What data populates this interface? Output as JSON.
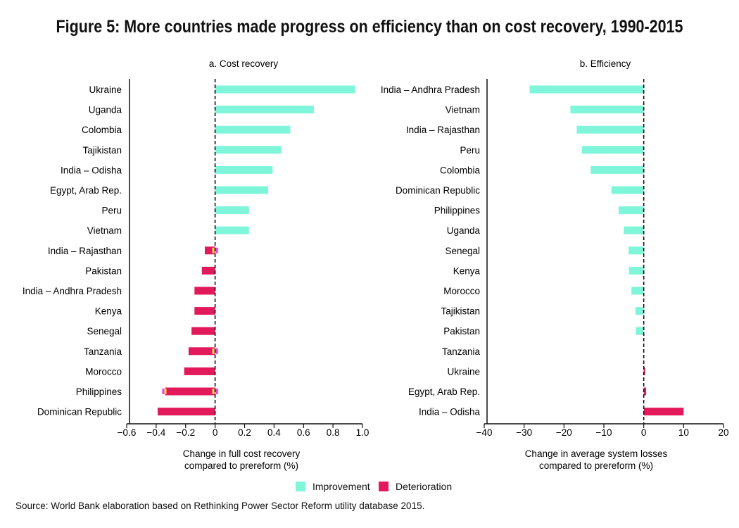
{
  "title": "Figure 5: More countries made progress on efficiency than on cost recovery, 1990-2015",
  "source": "Source: World Bank elaboration based on Rethinking Power Sector Reform utility database 2015.",
  "colors": {
    "improvement": "#7ff6d9",
    "deterioration": "#e2195a",
    "marker_yellow": "#ffe14d",
    "marker_magenta": "#e93be8"
  },
  "legend": {
    "improvement": "Improvement",
    "deterioration": "Deterioration"
  },
  "chart_data": [
    {
      "type": "bar",
      "orientation": "horizontal",
      "subtitle": "a. Cost recovery",
      "xlabel_lines": [
        "Change in full cost  recovery",
        "compared  to prereform (%)"
      ],
      "xlim": [
        -0.6,
        1.0
      ],
      "ticks": [
        -0.6,
        -0.4,
        -0.2,
        0,
        0.2,
        0.4,
        0.6,
        0.8,
        1.0
      ],
      "tick_labels": [
        "−0.6",
        "−0.4",
        "−0.2",
        "0",
        "0.2",
        "0.4",
        "0.6",
        "0.8",
        "1.0"
      ],
      "categories": [
        "Ukraine",
        "Uganda",
        "Colombia",
        "Tajikistan",
        "India – Odisha",
        "Egypt, Arab Rep.",
        "Peru",
        "Vietnam",
        "India – Rajasthan",
        "Pakistan",
        "India – Andhra  Pradesh",
        "Kenya",
        "Senegal",
        "Tanzania",
        "Morocco",
        "Philippines",
        "Dominican Republic"
      ],
      "values": [
        0.95,
        0.67,
        0.51,
        0.45,
        0.39,
        0.36,
        0.23,
        0.23,
        -0.07,
        -0.09,
        -0.14,
        -0.14,
        -0.16,
        -0.18,
        -0.21,
        -0.34,
        -0.39
      ],
      "legend": [
        "Improvement",
        "Deterioration"
      ]
    },
    {
      "type": "bar",
      "orientation": "horizontal",
      "subtitle": "b. Efficiency",
      "xlabel_lines": [
        "Change in average  system  losses",
        "compared  to prereform (%)"
      ],
      "xlim": [
        -40,
        20
      ],
      "ticks": [
        -40,
        -30,
        -20,
        -10,
        0,
        10,
        20
      ],
      "tick_labels": [
        "−40",
        "−30",
        "−20",
        "−10",
        "0",
        "10",
        "20"
      ],
      "categories": [
        "India – Andhra  Pradesh",
        "Vietnam",
        "India – Rajasthan",
        "Peru",
        "Colombia",
        "Dominican Republic",
        "Philippines",
        "Uganda",
        "Senegal",
        "Kenya",
        "Morocco",
        "Tajikistan",
        "Pakistan",
        "Tanzania",
        "Ukraine",
        "Egypt, Arab Rep.",
        "India – Odisha"
      ],
      "values": [
        -28.6,
        -18.4,
        -16.8,
        -15.5,
        -13.3,
        -8.1,
        -6.3,
        -5.0,
        -3.8,
        -3.7,
        -3.1,
        -2.1,
        -2.0,
        0,
        0.3,
        0.6,
        10.0
      ],
      "legend": [
        "Improvement",
        "Deterioration"
      ]
    }
  ]
}
